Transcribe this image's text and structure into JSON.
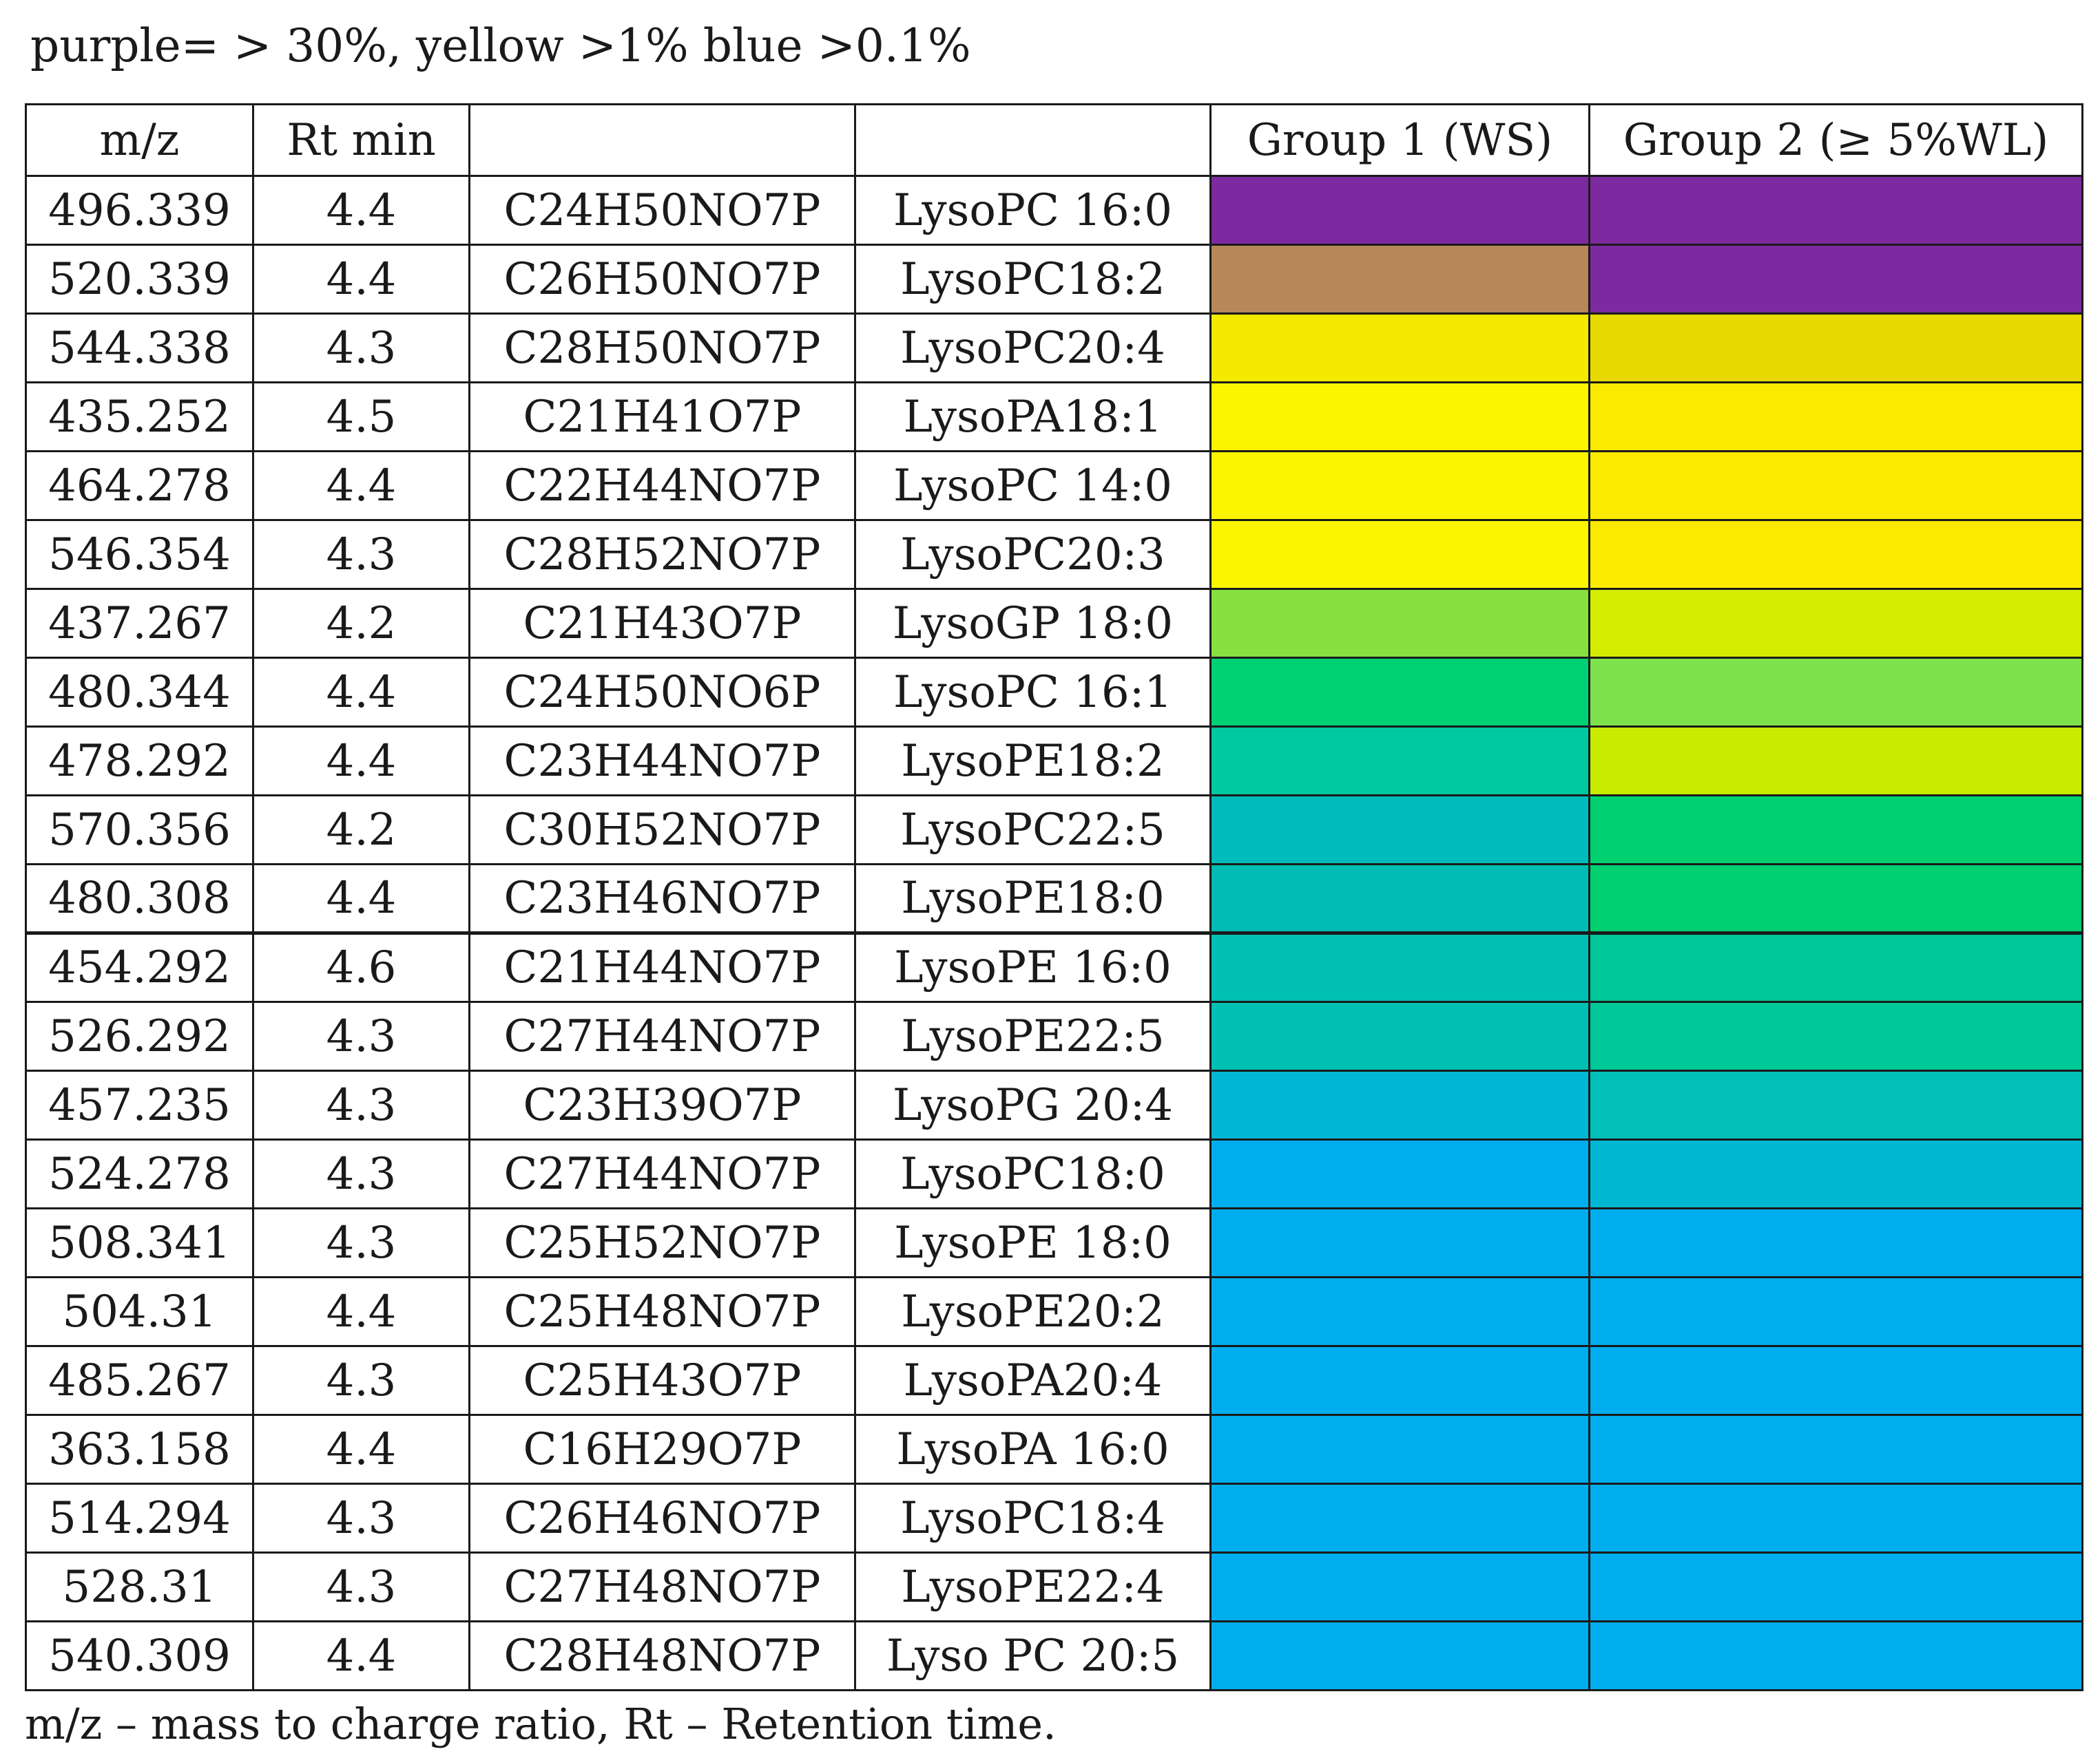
{
  "legend_note": "purple= > 30%, yellow >1% blue >0.1%",
  "table": {
    "headers": {
      "mz": "m/z",
      "rt": "Rt min",
      "formula": "",
      "name": "",
      "group1": "Group 1 (WS)",
      "group2": "Group 2 (≥ 5%WL)"
    },
    "rows": [
      {
        "mz": "496.339",
        "rt": "4.4",
        "formula": "C24H50NO7P",
        "name": "LysoPC 16:0",
        "group1_color": "#7d2aa0",
        "group2_color": "#7d2aa0"
      },
      {
        "mz": "520.339",
        "rt": "4.4",
        "formula": "C26H50NO7P",
        "name": "LysoPC18:2",
        "group1_color": "#b8875a",
        "group2_color": "#7d2aa0"
      },
      {
        "mz": "544.338",
        "rt": "4.3",
        "formula": "C28H50NO7P",
        "name": "LysoPC20:4",
        "group1_color": "#f4ea00",
        "group2_color": "#e8da00"
      },
      {
        "mz": "435.252",
        "rt": "4.5",
        "formula": "C21H41O7P",
        "name": "LysoPA18:1",
        "group1_color": "#fbf600",
        "group2_color": "#fbea00"
      },
      {
        "mz": "464.278",
        "rt": "4.4",
        "formula": "C22H44NO7P",
        "name": "LysoPC 14:0",
        "group1_color": "#fbf600",
        "group2_color": "#fbea00"
      },
      {
        "mz": "546.354",
        "rt": "4.3",
        "formula": "C28H52NO7P",
        "name": "LysoPC20:3",
        "group1_color": "#fbf600",
        "group2_color": "#fbea00"
      },
      {
        "mz": "437.267",
        "rt": "4.2",
        "formula": "C21H43O7P",
        "name": "LysoGP 18:0",
        "group1_color": "#86e040",
        "group2_color": "#d4ec00"
      },
      {
        "mz": "480.344",
        "rt": "4.4",
        "formula": "C24H50NO6P",
        "name": "LysoPC 16:1",
        "group1_color": "#00d274",
        "group2_color": "#7ee24c"
      },
      {
        "mz": "478.292",
        "rt": "4.4",
        "formula": "C23H44NO7P",
        "name": "LysoPE18:2",
        "group1_color": "#00c8a0",
        "group2_color": "#c8ec00"
      },
      {
        "mz": "570.356",
        "rt": "4.2",
        "formula": "C30H52NO7P",
        "name": "LysoPC22:5",
        "group1_color": "#00bcbc",
        "group2_color": "#00d070"
      },
      {
        "mz": "480.308",
        "rt": "4.4",
        "formula": "C23H46NO7P",
        "name": "LysoPE18:0",
        "group1_color": "#00bcb4",
        "group2_color": "#00d070"
      },
      {
        "mz": "454.292",
        "rt": "4.6",
        "formula": "C21H44NO7P",
        "name": "LysoPE 16:0",
        "group1_color": "#00c0b4",
        "group2_color": "#00c898"
      },
      {
        "mz": "526.292",
        "rt": "4.3",
        "formula": "C27H44NO7P",
        "name": "LysoPE22:5",
        "group1_color": "#00c0b4",
        "group2_color": "#00c898"
      },
      {
        "mz": "457.235",
        "rt": "4.3",
        "formula": "C23H39O7P",
        "name": "LysoPG 20:4",
        "group1_color": "#00b8d4",
        "group2_color": "#00c0b8"
      },
      {
        "mz": "524.278",
        "rt": "4.3",
        "formula": "C27H44NO7P",
        "name": "LysoPC18:0",
        "group1_color": "#00aeef",
        "group2_color": "#00b8d2"
      },
      {
        "mz": "508.341",
        "rt": "4.3",
        "formula": "C25H52NO7P",
        "name": "LysoPE 18:0",
        "group1_color": "#00aeef",
        "group2_color": "#00aeef"
      },
      {
        "mz": "504.31",
        "rt": "4.4",
        "formula": "C25H48NO7P",
        "name": "LysoPE20:2",
        "group1_color": "#00aeef",
        "group2_color": "#00aeef"
      },
      {
        "mz": "485.267",
        "rt": "4.3",
        "formula": "C25H43O7P",
        "name": "LysoPA20:4",
        "group1_color": "#00aeef",
        "group2_color": "#00aeef"
      },
      {
        "mz": "363.158",
        "rt": "4.4",
        "formula": "C16H29O7P",
        "name": "LysoPA 16:0",
        "group1_color": "#00aeef",
        "group2_color": "#00aeef"
      },
      {
        "mz": "514.294",
        "rt": "4.3",
        "formula": "C26H46NO7P",
        "name": "LysoPC18:4",
        "group1_color": "#00aeef",
        "group2_color": "#00aeef"
      },
      {
        "mz": "528.31",
        "rt": "4.3",
        "formula": "C27H48NO7P",
        "name": "LysoPE22:4",
        "group1_color": "#00aeef",
        "group2_color": "#00aeef"
      },
      {
        "mz": "540.309",
        "rt": "4.4",
        "formula": "C28H48NO7P",
        "name": "Lyso PC 20:5",
        "group1_color": "#00aeef",
        "group2_color": "#00aeef"
      }
    ]
  },
  "footnote": "m/z – mass to charge ratio, Rt – Retention time."
}
